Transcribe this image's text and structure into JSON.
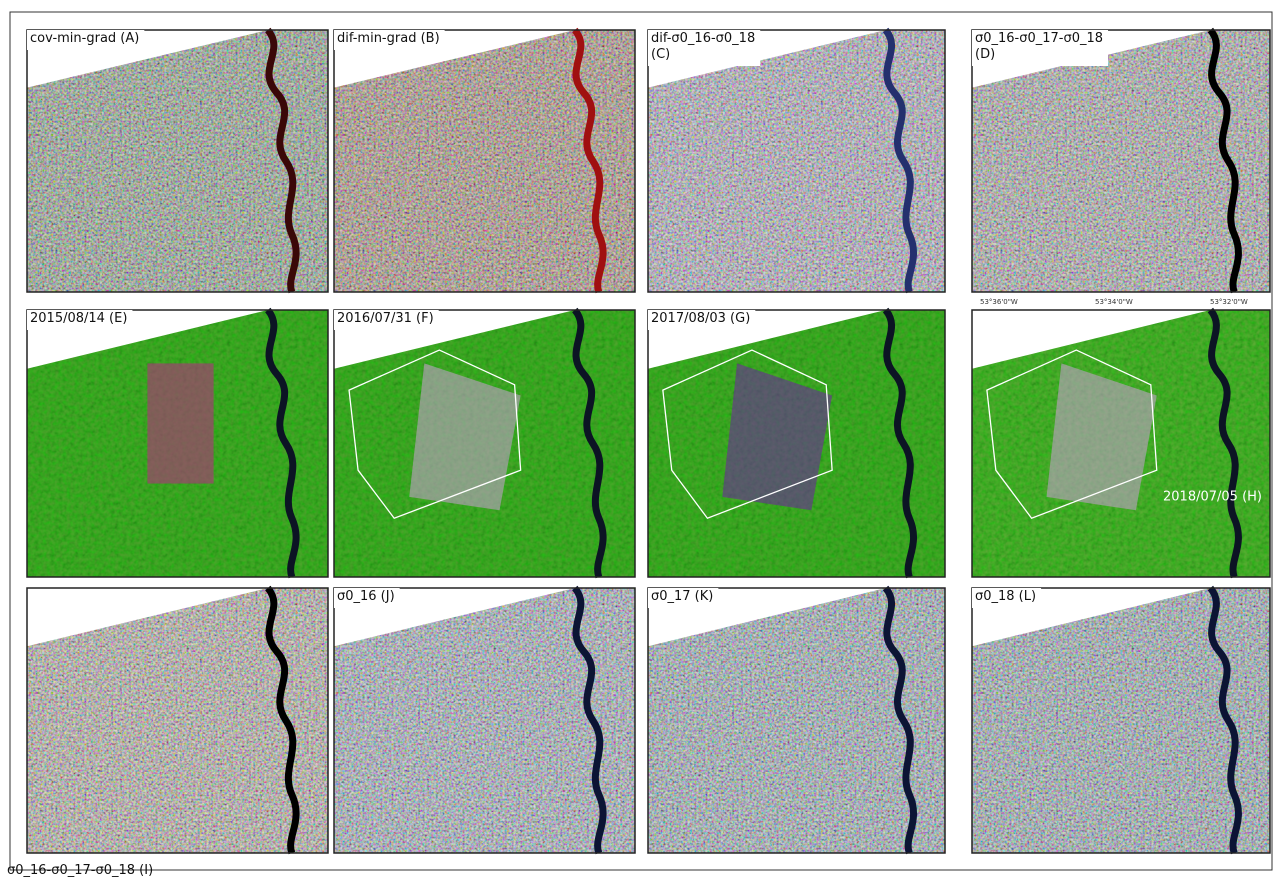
{
  "panels": [
    {
      "label": "cov-min-grad (A)"
    },
    {
      "label": "dif-min-grad (B)"
    },
    {
      "label": "dif-σ0_16-σ0_18\n(C)"
    },
    {
      "label": "σ0_16-σ0_17-σ0_18\n(D)"
    },
    {
      "label": "2015/08/14 (E)"
    },
    {
      "label": "2016/07/31 (F)"
    },
    {
      "label": "2017/08/03 (G)"
    },
    {
      "label": "2018/07/05 (H)",
      "coordinates": [
        "53°36'0\"W",
        "53°34'0\"W",
        "53°32'0\"W"
      ]
    },
    {
      "label": "σ0_16-σ0_17-σ0_18 (I)"
    },
    {
      "label": "σ0_16 (J)"
    },
    {
      "label": "σ0_17 (K)"
    },
    {
      "label": "σ0_18 (L)"
    }
  ]
}
